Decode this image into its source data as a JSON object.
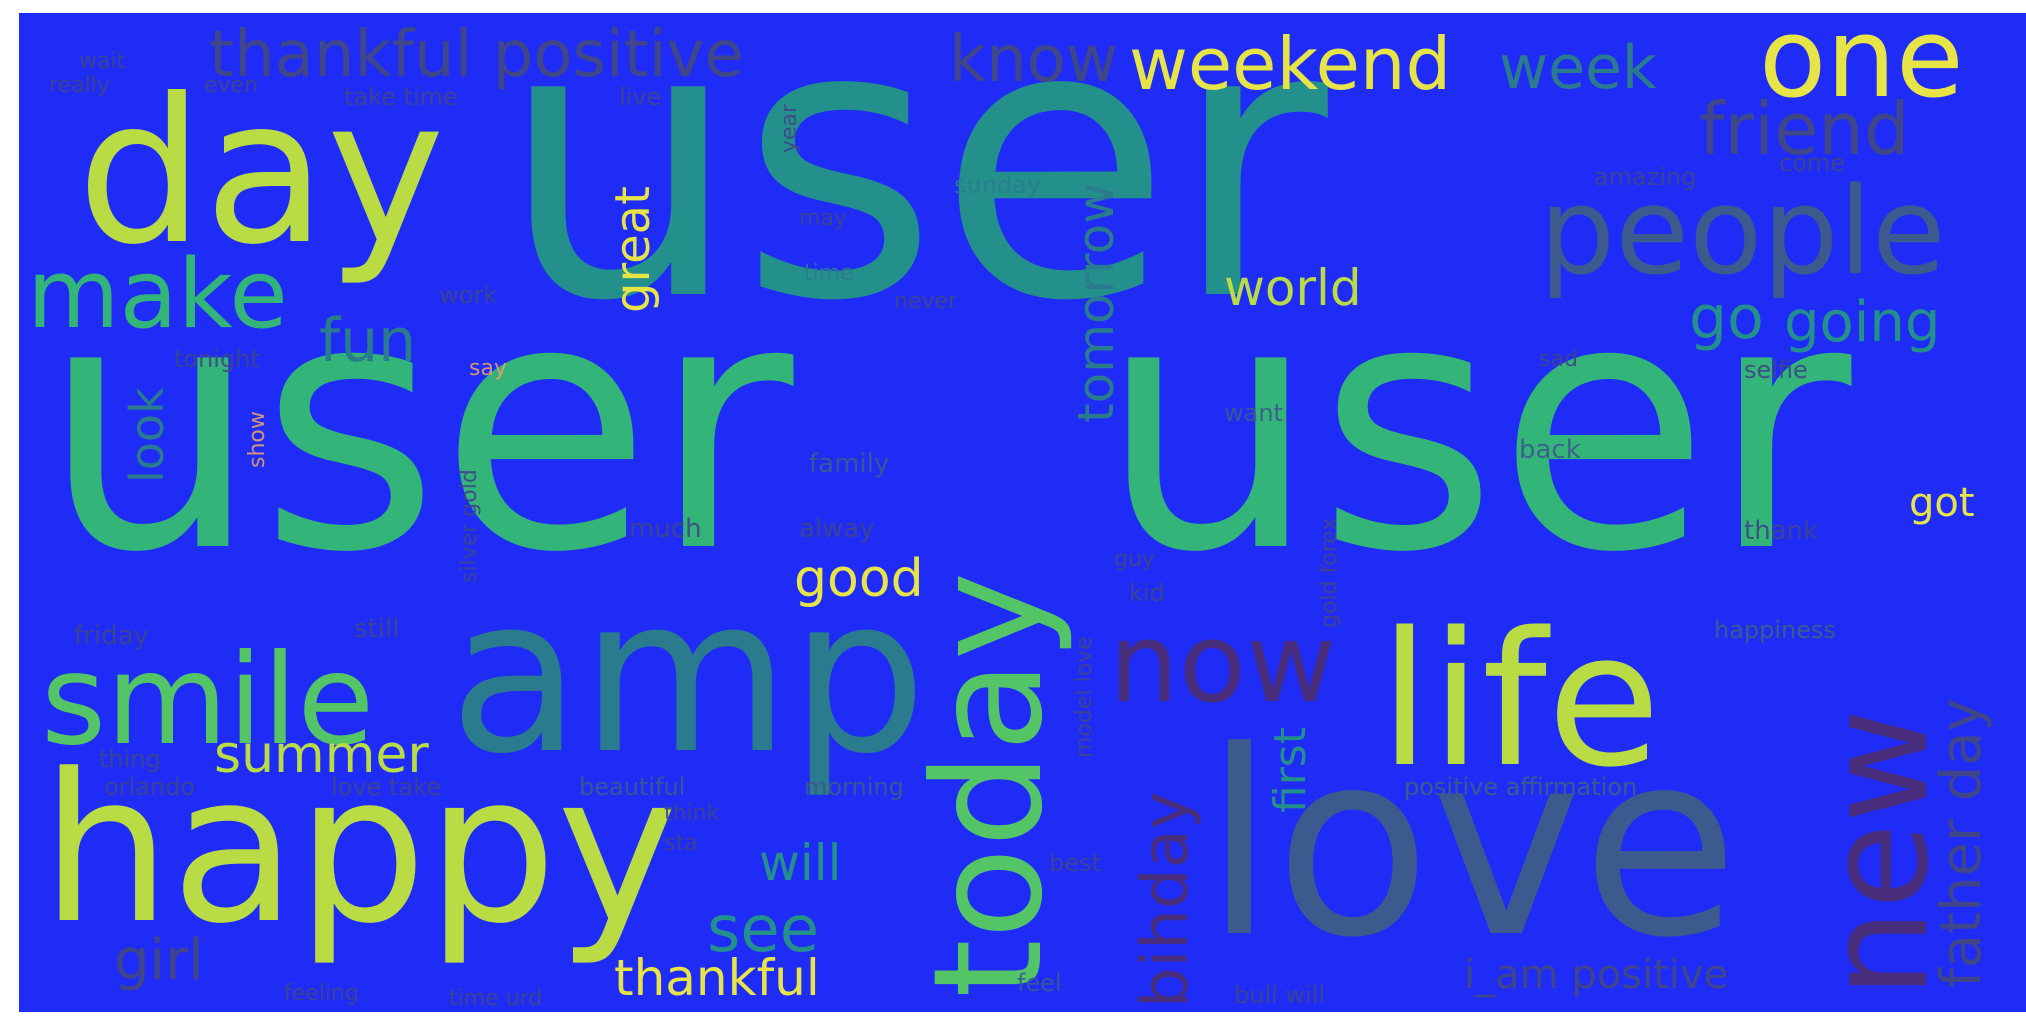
{
  "palette": {
    "background": "#1f2cf5",
    "yellow": "#e6e446",
    "lime": "#b9dc45",
    "green": "#54c566",
    "teal_green": "#33b57a",
    "teal": "#23908c",
    "teal_dark": "#2a7b8e",
    "slate": "#3b5b8e",
    "indigo": "#3f4689",
    "purple": "#472d7b"
  },
  "words": {
    "user_top": "user",
    "user_left": "user",
    "user_right": "user",
    "day": "day",
    "one": "one",
    "weekend": "weekend",
    "week": "week",
    "friend": "friend",
    "people": "people",
    "make": "make",
    "fun": "fun",
    "thankful_positive": "thankful positive",
    "know": "know",
    "great": "great",
    "tomorrow": "tomorrow",
    "world": "world",
    "go": "go",
    "going": "going",
    "amp": "amp",
    "today": "today",
    "now": "now",
    "life": "life",
    "new": "new",
    "love": "love",
    "smile": "smile",
    "summer": "summer",
    "happy": "happy",
    "good": "good",
    "got": "got",
    "see": "see",
    "will": "will",
    "thankful": "thankful",
    "girl": "girl",
    "bihday": "bihday",
    "first": "first",
    "father_day": "father day",
    "positive_affirmation": "positive affirmation",
    "i_am_positive": "i_am positive",
    "happiness": "happiness",
    "look": "look",
    "beautiful": "beautiful",
    "morning": "morning",
    "orlando": "orlando",
    "love_take": "love take",
    "thing": "thing",
    "friday": "friday",
    "still": "still",
    "really": "really",
    "even": "even",
    "take_time": "take time",
    "wait": "wait",
    "live": "live",
    "sunday": "sunday",
    "time": "time",
    "may": "may",
    "work": "work",
    "tonight": "tonight",
    "say": "say",
    "family": "family",
    "much": "much",
    "alway": "alway",
    "kid": "kid",
    "guy": "guy",
    "want": "want",
    "back": "back",
    "sad": "sad",
    "selfie": "selfie",
    "amazing": "amazing",
    "come": "come",
    "thank": "thank",
    "feel": "feel",
    "feeling": "feeling",
    "time_urd": "time urd",
    "bull_will": "bull will",
    "show": "show",
    "silver_gold": "silver gold",
    "gold_forex": "gold forex",
    "model_love": "model love",
    "think": "think",
    "sta": "sta",
    "best": "best",
    "never": "never",
    "year": "year"
  }
}
